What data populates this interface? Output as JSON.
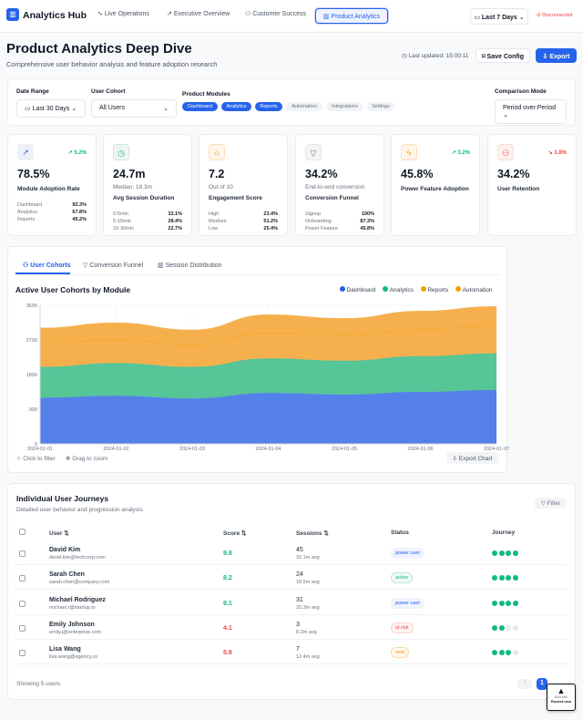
{
  "nav": {
    "brand": "Analytics Hub",
    "tabs": [
      "Live Operations",
      "Executive Overview",
      "Customer Success",
      "Product Analytics"
    ],
    "range": "Last 7 Days",
    "status": "Disconnected"
  },
  "header": {
    "title": "Product Analytics Deep Dive",
    "subtitle": "Comprehensive user behavior analysis and feature adoption research",
    "updated": "Last updated: 15:00:11",
    "save": "Save Config",
    "export": "Export"
  },
  "filters": {
    "date_label": "Date Range",
    "date_value": "Last 30 Days",
    "cohort_label": "User Cohort",
    "cohort_value": "All Users",
    "modules_label": "Product Modules",
    "modules": [
      {
        "name": "Dashboard",
        "on": true
      },
      {
        "name": "Analytics",
        "on": true
      },
      {
        "name": "Reports",
        "on": true
      },
      {
        "name": "Automation",
        "on": false
      },
      {
        "name": "Integrations",
        "on": false
      },
      {
        "name": "Settings",
        "on": false
      }
    ],
    "compare_label": "Comparison Mode",
    "compare_value": "Period over Period"
  },
  "kpis": [
    {
      "value": "78.5%",
      "title": "Module Adoption Rate",
      "trend": "5.2%",
      "rows": [
        [
          "Dashboard",
          "92.3%"
        ],
        [
          "Analytics",
          "67.8%"
        ],
        [
          "Reports",
          "45.2%"
        ]
      ]
    },
    {
      "value": "24.7m",
      "sub": "Median: 18.3m",
      "title": "Avg Session Duration",
      "rows": [
        [
          "0-5min",
          "32.1%"
        ],
        [
          "5-15min",
          "28.4%"
        ],
        [
          "15-30min",
          "22.7%"
        ]
      ]
    },
    {
      "value": "7.2",
      "sub": "Out of 10",
      "title": "Engagement Score",
      "rows": [
        [
          "High",
          "23.4%"
        ],
        [
          "Medium",
          "51.2%"
        ],
        [
          "Low",
          "25.4%"
        ]
      ]
    },
    {
      "value": "34.2%",
      "sub": "End-to-end conversion",
      "title": "Conversion Funnel",
      "rows": [
        [
          "Signup",
          "100%"
        ],
        [
          "Onboarding",
          "87.3%"
        ],
        [
          "Power Feature",
          "45.8%"
        ]
      ]
    },
    {
      "value": "45.8%",
      "title": "Power Feature Adoption",
      "trend": "3.2%"
    },
    {
      "value": "34.2%",
      "title": "User Retention",
      "trend": "1.8%"
    }
  ],
  "chart_tabs": [
    "User Cohorts",
    "Conversion Funnel",
    "Session Distribution"
  ],
  "chart_footer": {
    "filter": "Click to filter",
    "zoom": "Drag to zoom",
    "export": "Export Chart"
  },
  "chart_data": {
    "type": "area",
    "stacked": true,
    "title": "Active User Cohorts by Module",
    "x": [
      "2024-01-01",
      "2024-01-02",
      "2024-01-03",
      "2024-01-04",
      "2024-01-05",
      "2024-01-06",
      "2024-01-07"
    ],
    "ylim": [
      0,
      3600
    ],
    "yticks": [
      0,
      900,
      1800,
      2700,
      3600
    ],
    "legend": "top-right",
    "series": [
      {
        "name": "Dashboard",
        "color": "#5580ea",
        "legend_color": "#2563eb",
        "values": [
          1200,
          1250,
          1180,
          1320,
          1280,
          1350,
          1400
        ]
      },
      {
        "name": "Analytics",
        "color": "#56c597",
        "legend_color": "#10b981",
        "values": [
          800,
          850,
          820,
          900,
          880,
          930,
          950
        ]
      },
      {
        "name": "Reports",
        "color": "#f5b04d",
        "legend_color": "#f59e0b",
        "values": [
          600,
          620,
          570,
          670,
          660,
          690,
          720
        ]
      },
      {
        "name": "Automation",
        "color": "#f5b04d",
        "legend_color": "#f59e0b",
        "values": [
          410,
          425,
          390,
          465,
          440,
          480,
          500
        ]
      }
    ]
  },
  "table": {
    "title": "Individual User Journeys",
    "subtitle": "Detailed user behavior and progression analysis",
    "filter": "Filter",
    "headers": [
      "User ⇅",
      "Score ⇅",
      "Sessions ⇅",
      "Status",
      "Journey"
    ],
    "rows": [
      {
        "name": "David Kim",
        "email": "david.kim@techcorp.com",
        "score": "9.8",
        "sessions": "45",
        "avg": "32.1m avg",
        "status": "power user",
        "journey": 4
      },
      {
        "name": "Sarah Chen",
        "email": "sarah.chen@company.com",
        "score": "8.2",
        "sessions": "24",
        "avg": "18.5m avg",
        "status": "active",
        "journey": 4
      },
      {
        "name": "Michael Rodriguez",
        "email": "michael.r@startup.io",
        "score": "9.1",
        "sessions": "31",
        "avg": "25.3m avg",
        "status": "power user",
        "journey": 4
      },
      {
        "name": "Emily Johnson",
        "email": "emily.j@enterprise.com",
        "score": "4.1",
        "sessions": "3",
        "avg": "8.2m avg",
        "status": "at risk",
        "journey": 2
      },
      {
        "name": "Lisa Wang",
        "email": "lisa.wang@agency.co",
        "score": "5.8",
        "sessions": "7",
        "avg": "12.4m avg",
        "status": "new",
        "journey": 3
      }
    ],
    "showing": "Showing 5 users",
    "page": "1"
  },
  "badge": {
    "line1": "Built with",
    "line2": "Rocket.new"
  }
}
